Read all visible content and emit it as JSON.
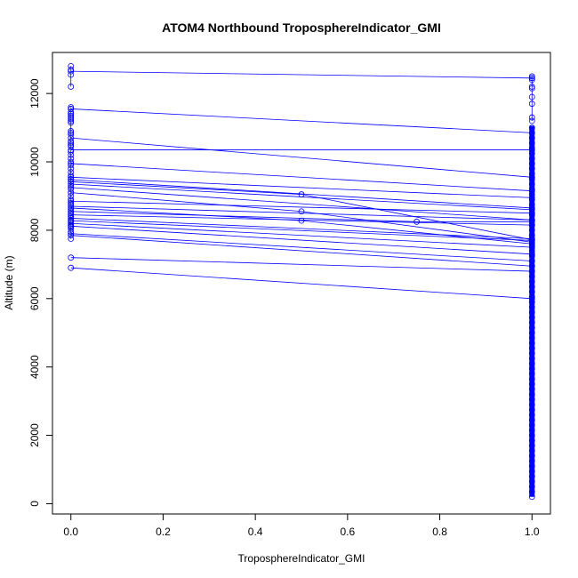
{
  "chart_data": {
    "type": "scatter",
    "title": "ATOM4 Northbound TroposphereIndicator_GMI",
    "xlabel": "TroposphereIndicator_GMI",
    "ylabel": "Altitude (m)",
    "xlim": [
      -0.04,
      1.04
    ],
    "ylim": [
      -300,
      13200
    ],
    "x_ticks": [
      0.0,
      0.2,
      0.4,
      0.6,
      0.8,
      1.0
    ],
    "x_tick_labels": [
      "0.0",
      "0.2",
      "0.4",
      "0.6",
      "0.8",
      "1.0"
    ],
    "y_ticks": [
      0,
      2000,
      4000,
      6000,
      8000,
      10000,
      12000
    ],
    "y_tick_labels": [
      "0",
      "2000",
      "4000",
      "6000",
      "8000",
      "10000",
      "12000"
    ],
    "grid": false,
    "series_color": "#0000ff",
    "marker": "open-circle",
    "segments": [
      {
        "x": [
          0,
          1
        ],
        "y": [
          12650,
          12450
        ]
      },
      {
        "x": [
          0,
          1
        ],
        "y": [
          11550,
          10850
        ]
      },
      {
        "x": [
          0,
          1
        ],
        "y": [
          10700,
          9550
        ]
      },
      {
        "x": [
          0,
          1
        ],
        "y": [
          10350,
          10350
        ]
      },
      {
        "x": [
          0,
          1
        ],
        "y": [
          9950,
          9150
        ]
      },
      {
        "x": [
          0,
          1
        ],
        "y": [
          9550,
          8950
        ]
      },
      {
        "x": [
          0,
          1
        ],
        "y": [
          9480,
          8650
        ]
      },
      {
        "x": [
          0,
          0.5,
          1
        ],
        "y": [
          9420,
          9050,
          7720
        ]
      },
      {
        "x": [
          0,
          1
        ],
        "y": [
          9350,
          8600
        ]
      },
      {
        "x": [
          0,
          1
        ],
        "y": [
          9250,
          8300
        ]
      },
      {
        "x": [
          0,
          0.5,
          1
        ],
        "y": [
          9100,
          8550,
          7650
        ]
      },
      {
        "x": [
          0,
          1
        ],
        "y": [
          8850,
          8500
        ]
      },
      {
        "x": [
          0,
          1
        ],
        "y": [
          8700,
          8300
        ]
      },
      {
        "x": [
          0,
          0.5,
          1
        ],
        "y": [
          8650,
          8280,
          7600
        ]
      },
      {
        "x": [
          0,
          0.75,
          1
        ],
        "y": [
          8550,
          8250,
          8250
        ]
      },
      {
        "x": [
          0,
          1
        ],
        "y": [
          8450,
          8150
        ]
      },
      {
        "x": [
          0,
          1
        ],
        "y": [
          8350,
          7750
        ]
      },
      {
        "x": [
          0,
          1
        ],
        "y": [
          8280,
          7700
        ]
      },
      {
        "x": [
          0,
          1
        ],
        "y": [
          8200,
          7500
        ]
      },
      {
        "x": [
          0,
          1
        ],
        "y": [
          8120,
          7300
        ]
      },
      {
        "x": [
          0,
          1
        ],
        "y": [
          7900,
          7100
        ]
      },
      {
        "x": [
          0,
          1
        ],
        "y": [
          7850,
          6950
        ]
      },
      {
        "x": [
          0,
          1
        ],
        "y": [
          7200,
          6800
        ]
      },
      {
        "x": [
          0,
          1
        ],
        "y": [
          6900,
          6000
        ]
      }
    ],
    "extra_points_x0": [
      12800,
      12700,
      12550,
      12200,
      11600,
      11550,
      11450,
      11400,
      11350,
      11300,
      11250,
      11200,
      11150,
      10900,
      10850,
      10800,
      10600,
      10550,
      10500,
      10450,
      10300,
      10200,
      10100,
      10000,
      9900,
      9800,
      9700,
      9600,
      9500,
      9300,
      9200,
      9100,
      9000,
      8900,
      8800,
      8750,
      8600,
      8500,
      8400,
      8300,
      8250,
      8150,
      8100,
      8050,
      7950,
      7750
    ],
    "x1_column": {
      "ymin": 200,
      "ymax": 11050
    },
    "x1_top_points": [
      12500,
      12450,
      12400,
      12200,
      12150,
      11900,
      11700,
      11300,
      11200
    ]
  }
}
